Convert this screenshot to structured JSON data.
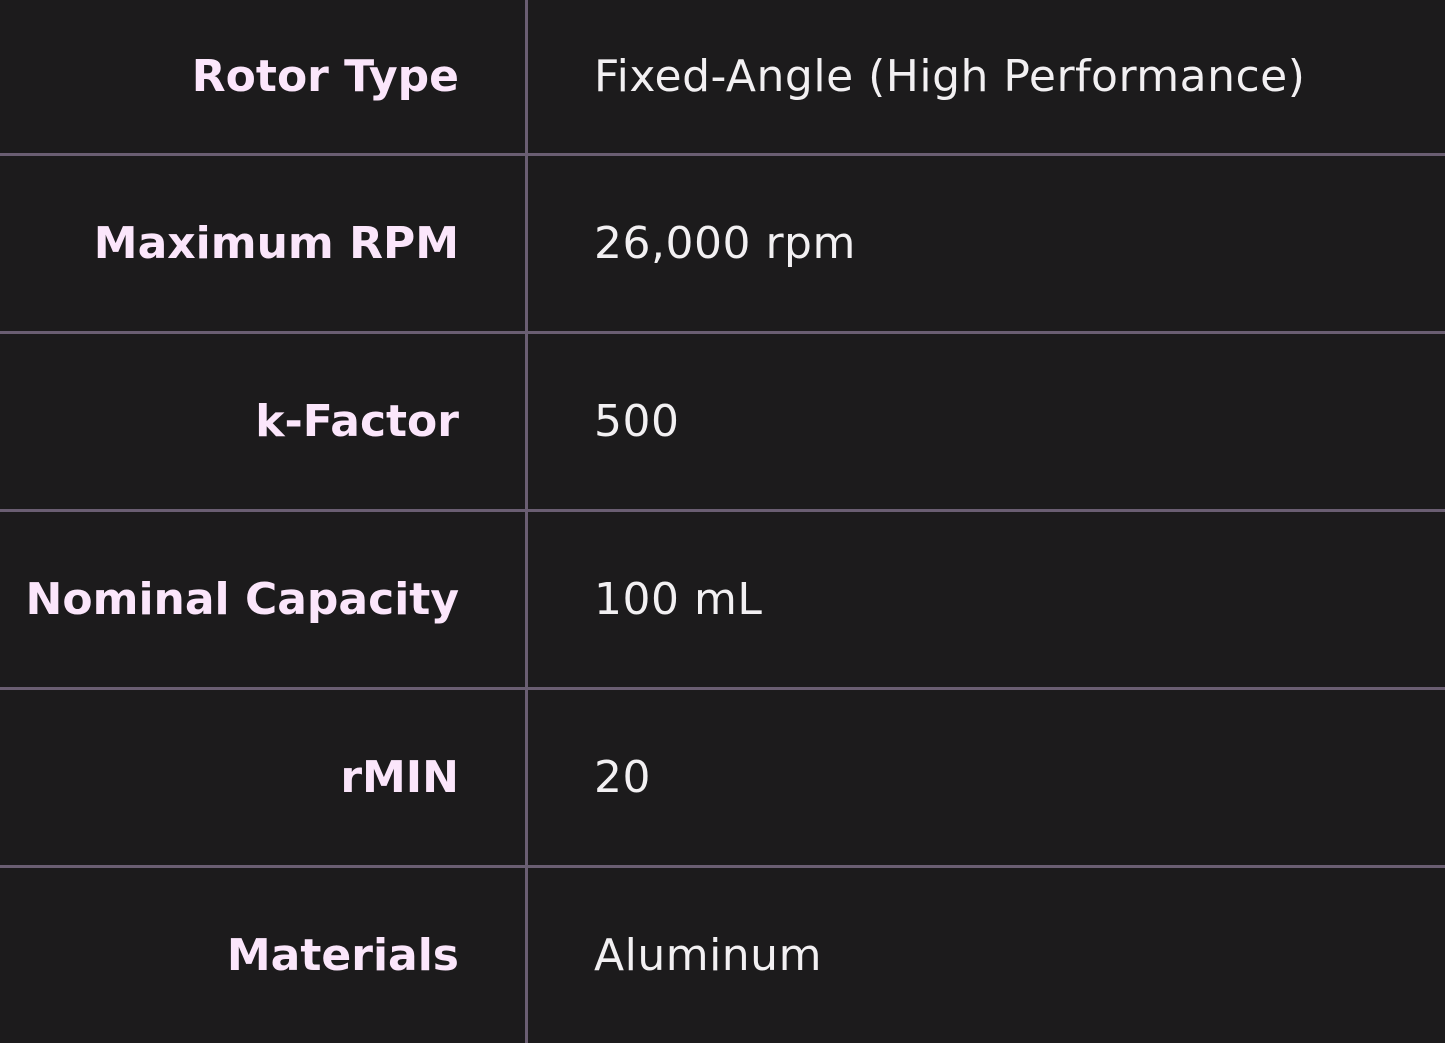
{
  "spec_table": {
    "rows": [
      {
        "label": "Rotor Type",
        "value": "Fixed-Angle (High Performance)"
      },
      {
        "label": "Maximum RPM",
        "value": "26,000 rpm"
      },
      {
        "label": "k-Factor",
        "value": "500"
      },
      {
        "label": "Nominal Capacity",
        "value": "100 mL"
      },
      {
        "label": "rMIN",
        "value": "20"
      },
      {
        "label": "Materials",
        "value": "Aluminum"
      }
    ]
  },
  "colors": {
    "background": "#1c1b1c",
    "border": "#6a5e72",
    "label_text": "#fbe6fb",
    "value_text": "#f2f0f2"
  }
}
